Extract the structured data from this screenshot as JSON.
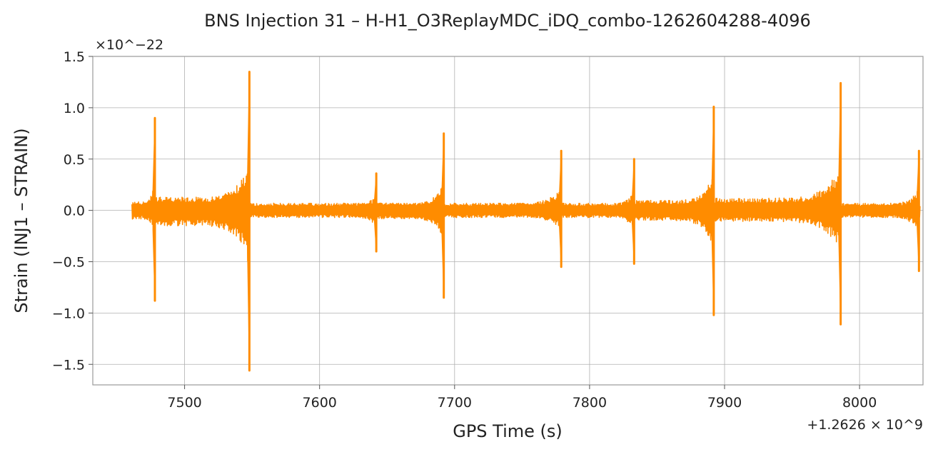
{
  "chart_data": {
    "type": "line",
    "title": "BNS Injection 31 – H-H1_O3ReplayMDC_iDQ_combo-1262604288-4096",
    "xlabel": "GPS Time (s)",
    "ylabel": "Strain (INJ1 – STRAIN)",
    "x_offset_label": "+1.2626 × 10^9",
    "y_scale_label": "×10^−22",
    "xlim": [
      7432,
      8047
    ],
    "ylim": [
      -1.7,
      1.5
    ],
    "x_ticks": [
      7500,
      7600,
      7700,
      7800,
      7900,
      8000
    ],
    "x_tick_labels": [
      "7500",
      "7600",
      "7700",
      "7800",
      "7900",
      "8000"
    ],
    "y_ticks": [
      -1.5,
      -1.0,
      -0.5,
      0.0,
      0.5,
      1.0,
      1.5
    ],
    "y_tick_labels": [
      "−1.5",
      "−1.0",
      "−0.5",
      "0.0",
      "0.5",
      "1.0",
      "1.5"
    ],
    "grid": true,
    "series": [
      {
        "color": "#ff8c00",
        "data_range": [
          7461,
          8045
        ],
        "baseline_amplitude": 0.05,
        "events": [
          {
            "time": 7478,
            "max": 0.9,
            "min": -0.88
          },
          {
            "time": 7548,
            "max": 1.35,
            "min": -1.56
          },
          {
            "time": 7642,
            "max": 0.36,
            "min": -0.4
          },
          {
            "time": 7692,
            "max": 0.75,
            "min": -0.85
          },
          {
            "time": 7779,
            "max": 0.58,
            "min": -0.55
          },
          {
            "time": 7833,
            "max": 0.5,
            "min": -0.52
          },
          {
            "time": 7892,
            "max": 1.01,
            "min": -1.02
          },
          {
            "time": 7986,
            "max": 1.24,
            "min": -1.11
          },
          {
            "time": 8044,
            "max": 0.58,
            "min": -0.59
          }
        ]
      }
    ]
  }
}
